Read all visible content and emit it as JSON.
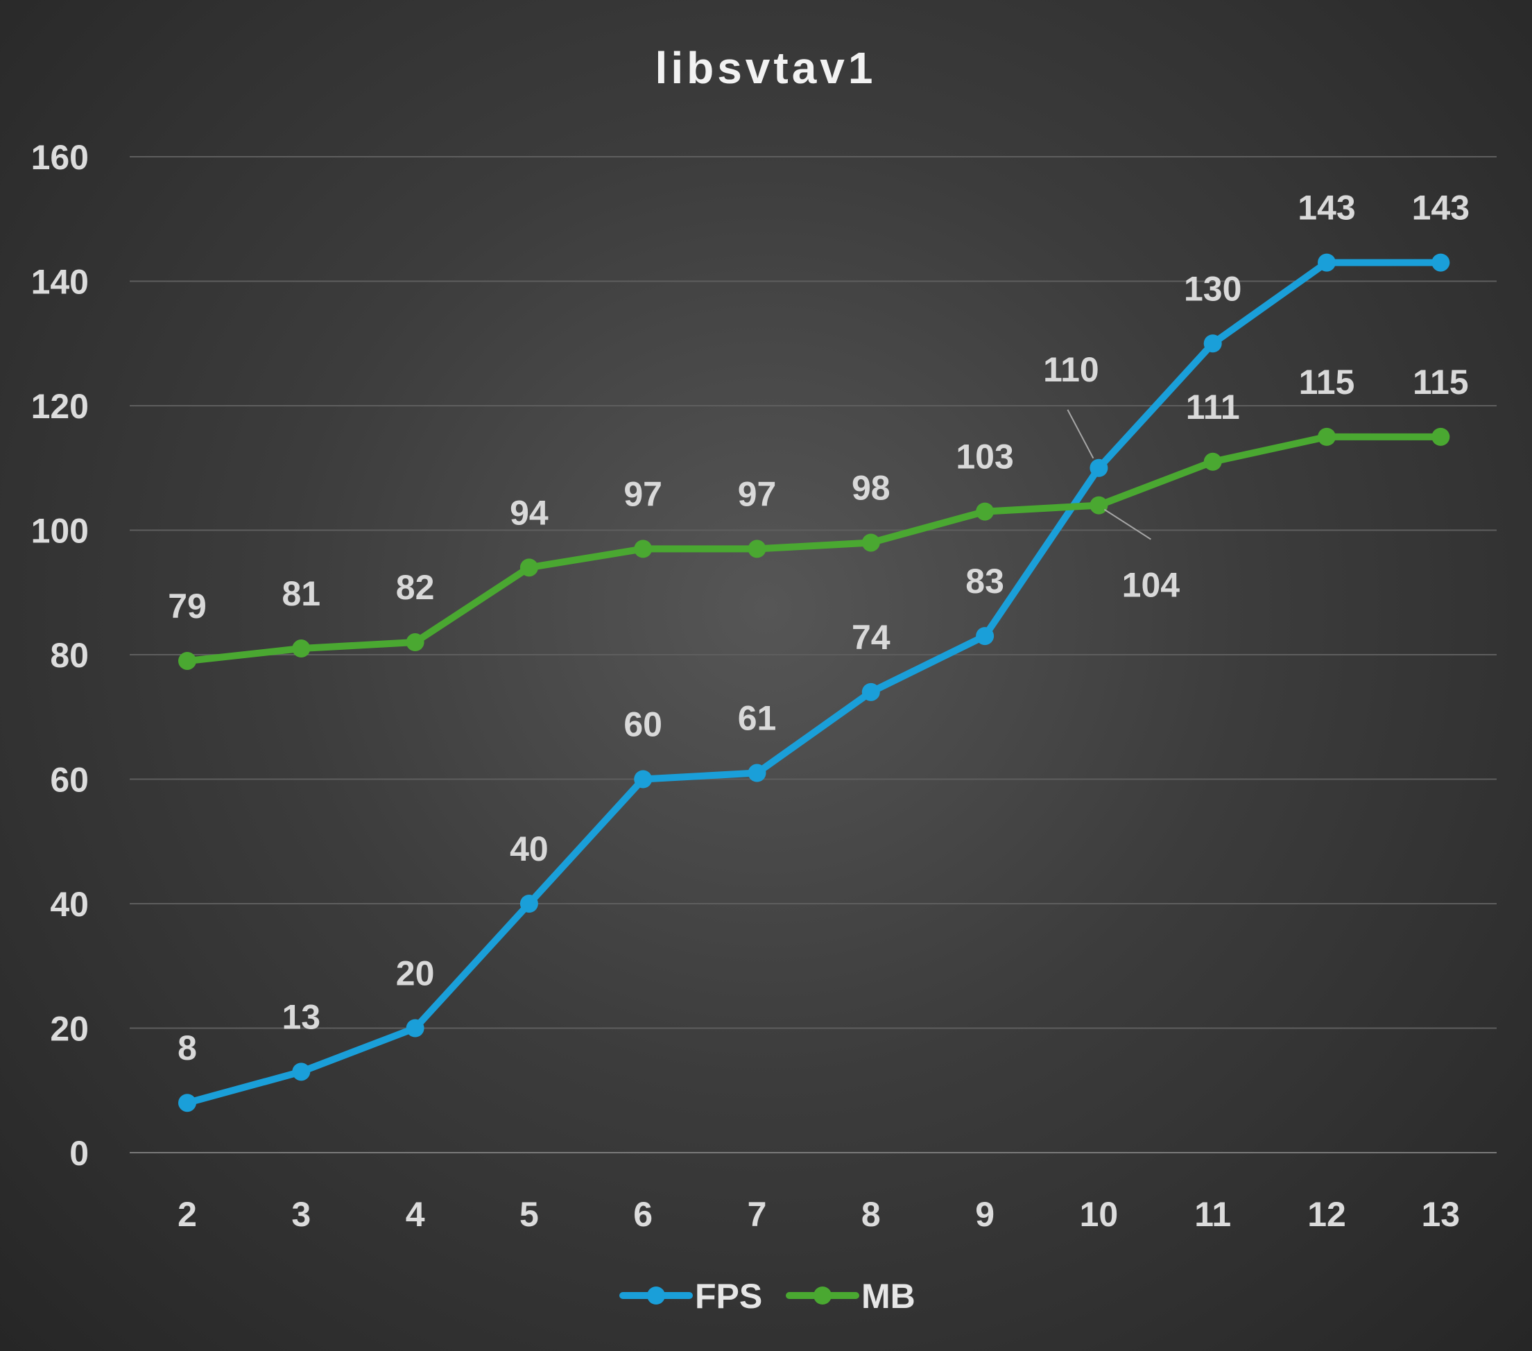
{
  "chart_data": {
    "type": "line",
    "title": "libsvtav1",
    "xlabel": "",
    "ylabel": "",
    "categories": [
      "2",
      "3",
      "4",
      "5",
      "6",
      "7",
      "8",
      "9",
      "10",
      "11",
      "12",
      "13"
    ],
    "series": [
      {
        "name": "FPS",
        "color": "#1a9fd9",
        "values": [
          8,
          13,
          20,
          40,
          60,
          61,
          74,
          83,
          110,
          130,
          143,
          143
        ],
        "labels": [
          "8",
          "13",
          "20",
          "40",
          "60",
          "61",
          "74",
          "83",
          "110",
          "130",
          "143",
          "143"
        ]
      },
      {
        "name": "MB",
        "color": "#4aa831",
        "values": [
          79,
          81,
          82,
          94,
          97,
          97,
          98,
          103,
          104,
          111,
          115,
          115
        ],
        "labels": [
          "79",
          "81",
          "82",
          "94",
          "97",
          "97",
          "98",
          "103",
          "104",
          "111",
          "115",
          "115"
        ]
      }
    ],
    "ylim": [
      0,
      160
    ],
    "yticks": [
      "0",
      "20",
      "40",
      "60",
      "80",
      "100",
      "120",
      "140",
      "160"
    ],
    "grid": true,
    "legend_position": "bottom-center"
  }
}
